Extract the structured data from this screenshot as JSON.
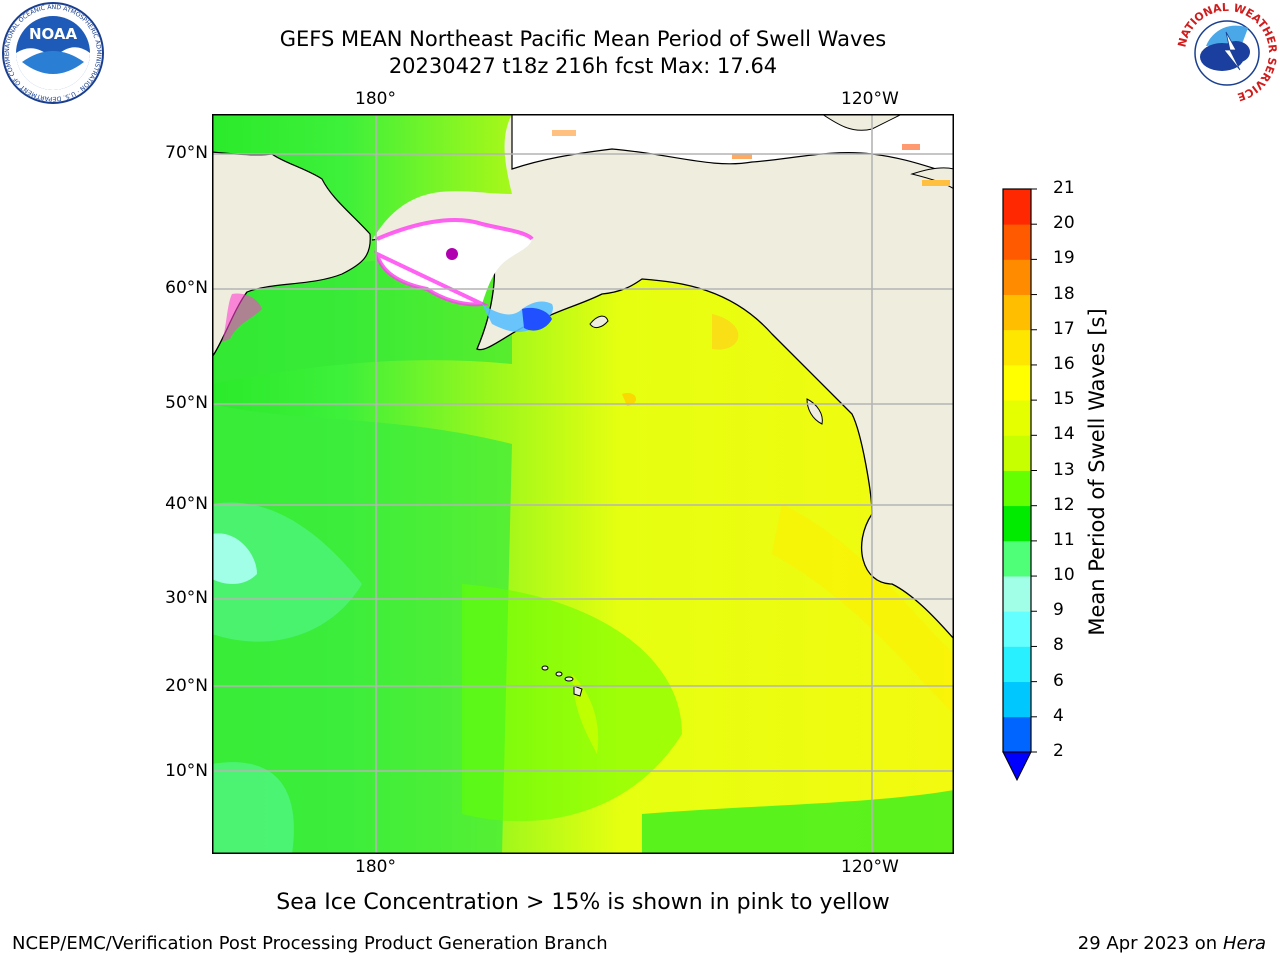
{
  "header": {
    "title_line1": "GEFS MEAN Northeast Pacific Mean Period of Swell Waves",
    "title_line2": "20230427 t18z 216h fcst   Max: 17.64"
  },
  "logos": {
    "left": {
      "name": "noaa-logo",
      "text": "NOAA",
      "ring_text": "NATIONAL OCEANIC AND ATMOSPHERIC ADMINISTRATION · U.S. DEPARTMENT OF COMMERCE"
    },
    "right": {
      "name": "nws-logo",
      "ring_text": "NATIONAL WEATHER SERVICE"
    }
  },
  "map": {
    "lon_labels": [
      "180°",
      "120°W"
    ],
    "lat_labels": [
      "70°N",
      "60°N",
      "50°N",
      "40°N",
      "30°N",
      "20°N",
      "10°N"
    ],
    "colors": {
      "land": "#efedde",
      "coast": "#000000",
      "grid": "#b4b4b4",
      "ice": "#ffffff"
    }
  },
  "colorbar": {
    "title": "Mean Period of Swell Waves [s]",
    "ticks": [
      "2",
      "4",
      "6",
      "8",
      "9",
      "10",
      "11",
      "12",
      "13",
      "14",
      "15",
      "16",
      "17",
      "18",
      "19",
      "20",
      "21"
    ],
    "colors": [
      "#0064ff",
      "#00c8ff",
      "#28f0ff",
      "#64ffff",
      "#a0ffe6",
      "#50ff78",
      "#00eb00",
      "#64ff00",
      "#c8ff00",
      "#e6ff00",
      "#ffff00",
      "#ffe600",
      "#ffbe00",
      "#ff8c00",
      "#ff5a00",
      "#ff2800",
      "#ff0000"
    ],
    "under_color": "#0000ff"
  },
  "footer": {
    "note": "Sea Ice Concentration > 15% is shown in pink to yellow",
    "credit": "NCEP/EMC/Verification Post Processing Product Generation Branch",
    "date": "29 Apr 2023 on ",
    "machine": "Hera"
  }
}
